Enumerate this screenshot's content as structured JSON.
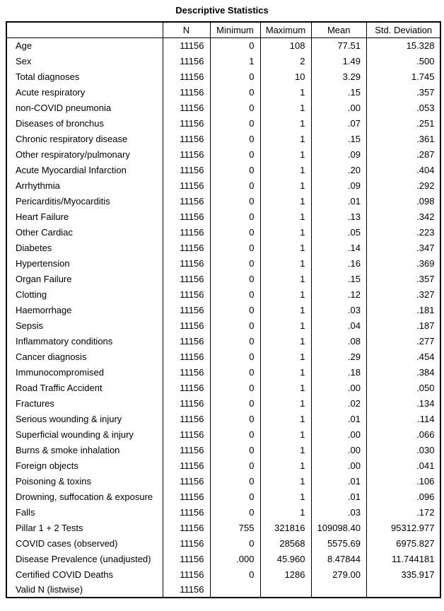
{
  "title": "Descriptive Statistics",
  "table": {
    "columns": [
      "",
      "N",
      "Minimum",
      "Maximum",
      "Mean",
      "Std. Deviation"
    ],
    "rows": [
      {
        "label": "Age",
        "n": "11156",
        "min": "0",
        "max": "108",
        "mean": "77.51",
        "std": "15.328"
      },
      {
        "label": "Sex",
        "n": "11156",
        "min": "1",
        "max": "2",
        "mean": "1.49",
        "std": ".500"
      },
      {
        "label": "Total diagnoses",
        "n": "11156",
        "min": "0",
        "max": "10",
        "mean": "3.29",
        "std": "1.745"
      },
      {
        "label": "Acute respiratory",
        "n": "11156",
        "min": "0",
        "max": "1",
        "mean": ".15",
        "std": ".357"
      },
      {
        "label": "non-COVID pneumonia",
        "n": "11156",
        "min": "0",
        "max": "1",
        "mean": ".00",
        "std": ".053"
      },
      {
        "label": "Diseases of bronchus",
        "n": "11156",
        "min": "0",
        "max": "1",
        "mean": ".07",
        "std": ".251"
      },
      {
        "label": "Chronic respiratory disease",
        "n": "11156",
        "min": "0",
        "max": "1",
        "mean": ".15",
        "std": ".361"
      },
      {
        "label": "Other respiratory/pulmonary",
        "n": "11156",
        "min": "0",
        "max": "1",
        "mean": ".09",
        "std": ".287"
      },
      {
        "label": "Acute Myocardial Infarction",
        "n": "11156",
        "min": "0",
        "max": "1",
        "mean": ".20",
        "std": ".404"
      },
      {
        "label": "Arrhythmia",
        "n": "11156",
        "min": "0",
        "max": "1",
        "mean": ".09",
        "std": ".292"
      },
      {
        "label": "Pericarditis/Myocarditis",
        "n": "11156",
        "min": "0",
        "max": "1",
        "mean": ".01",
        "std": ".098"
      },
      {
        "label": "Heart Failure",
        "n": "11156",
        "min": "0",
        "max": "1",
        "mean": ".13",
        "std": ".342"
      },
      {
        "label": "Other Cardiac",
        "n": "11156",
        "min": "0",
        "max": "1",
        "mean": ".05",
        "std": ".223"
      },
      {
        "label": "Diabetes",
        "n": "11156",
        "min": "0",
        "max": "1",
        "mean": ".14",
        "std": ".347"
      },
      {
        "label": "Hypertension",
        "n": "11156",
        "min": "0",
        "max": "1",
        "mean": ".16",
        "std": ".369"
      },
      {
        "label": "Organ Failure",
        "n": "11156",
        "min": "0",
        "max": "1",
        "mean": ".15",
        "std": ".357"
      },
      {
        "label": "Clotting",
        "n": "11156",
        "min": "0",
        "max": "1",
        "mean": ".12",
        "std": ".327"
      },
      {
        "label": "Haemorrhage",
        "n": "11156",
        "min": "0",
        "max": "1",
        "mean": ".03",
        "std": ".181"
      },
      {
        "label": "Sepsis",
        "n": "11156",
        "min": "0",
        "max": "1",
        "mean": ".04",
        "std": ".187"
      },
      {
        "label": "Inflammatory conditions",
        "n": "11156",
        "min": "0",
        "max": "1",
        "mean": ".08",
        "std": ".277"
      },
      {
        "label": "Cancer diagnosis",
        "n": "11156",
        "min": "0",
        "max": "1",
        "mean": ".29",
        "std": ".454"
      },
      {
        "label": "Immunocompromised",
        "n": "11156",
        "min": "0",
        "max": "1",
        "mean": ".18",
        "std": ".384"
      },
      {
        "label": "Road Traffic Accident",
        "n": "11156",
        "min": "0",
        "max": "1",
        "mean": ".00",
        "std": ".050"
      },
      {
        "label": "Fractures",
        "n": "11156",
        "min": "0",
        "max": "1",
        "mean": ".02",
        "std": ".134"
      },
      {
        "label": "Serious wounding & injury",
        "n": "11156",
        "min": "0",
        "max": "1",
        "mean": ".01",
        "std": ".114"
      },
      {
        "label": "Superficial wounding & injury",
        "n": "11156",
        "min": "0",
        "max": "1",
        "mean": ".00",
        "std": ".066"
      },
      {
        "label": "Burns & smoke inhalation",
        "n": "11156",
        "min": "0",
        "max": "1",
        "mean": ".00",
        "std": ".030"
      },
      {
        "label": "Foreign objects",
        "n": "11156",
        "min": "0",
        "max": "1",
        "mean": ".00",
        "std": ".041"
      },
      {
        "label": "Poisoning & toxins",
        "n": "11156",
        "min": "0",
        "max": "1",
        "mean": ".01",
        "std": ".106"
      },
      {
        "label": "Drowning, suffocation & exposure",
        "n": "11156",
        "min": "0",
        "max": "1",
        "mean": ".01",
        "std": ".096"
      },
      {
        "label": "Falls",
        "n": "11156",
        "min": "0",
        "max": "1",
        "mean": ".03",
        "std": ".172"
      },
      {
        "label": "Pillar 1 + 2 Tests",
        "n": "11156",
        "min": "755",
        "max": "321816",
        "mean": "109098.40",
        "std": "95312.977"
      },
      {
        "label": "COVID cases (observed)",
        "n": "11156",
        "min": "0",
        "max": "28568",
        "mean": "5575.69",
        "std": "6975.827"
      },
      {
        "label": "Disease Prevalence (unadjusted)",
        "n": "11156",
        "min": ".000",
        "max": "45.960",
        "mean": "8.47844",
        "std": "11.744181"
      },
      {
        "label": "Certified COVID Deaths",
        "n": "11156",
        "min": "0",
        "max": "1286",
        "mean": "279.00",
        "std": "335.917"
      },
      {
        "label": "Valid N (listwise)",
        "n": "11156",
        "min": "",
        "max": "",
        "mean": "",
        "std": ""
      }
    ]
  }
}
